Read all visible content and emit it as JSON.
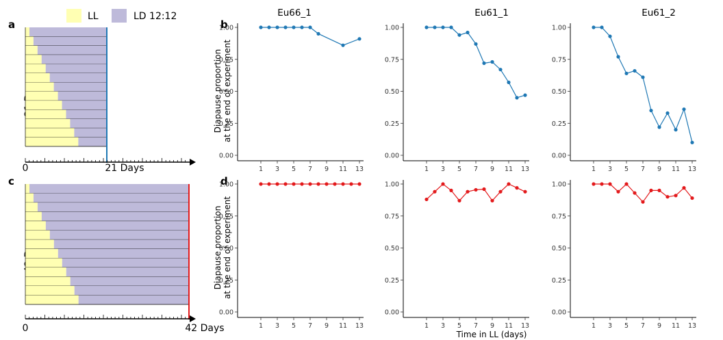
{
  "legend": {
    "items": [
      {
        "label": "LL",
        "color": "#ffffb3"
      },
      {
        "label": "LD 12:12",
        "color": "#bebada"
      }
    ]
  },
  "schematics": [
    {
      "panel": "a",
      "side_label": "21 Days",
      "axis_start": "0",
      "axis_end": "21 Days",
      "line_color": "#1f78b4",
      "ll_fractions": [
        0.05,
        0.1,
        0.15,
        0.2,
        0.25,
        0.3,
        0.35,
        0.4,
        0.45,
        0.5,
        0.55,
        0.6,
        0.65
      ]
    },
    {
      "panel": "c",
      "side_label": "42 Days",
      "axis_start": "0",
      "axis_end": "42 Days",
      "line_color": "#e31a1c",
      "ll_fractions": [
        0.025,
        0.05,
        0.075,
        0.1,
        0.125,
        0.15,
        0.175,
        0.2,
        0.225,
        0.25,
        0.275,
        0.3,
        0.325
      ]
    }
  ],
  "row_labels": [
    "b",
    "d"
  ],
  "column_titles": [
    "Eu66_1",
    "Eu61_1",
    "Eu61_2"
  ],
  "ylabel_line1": "Diapause proportion",
  "ylabel_line2": "at the end of experiment",
  "xlabel": "Time in LL (days)",
  "x_ticks": [
    "1",
    "3",
    "5",
    "7",
    "9",
    "11",
    "13"
  ],
  "y_ticks": [
    "0.00",
    "0.25",
    "0.50",
    "0.75",
    "1.00"
  ],
  "chart_data": [
    {
      "type": "line",
      "row": "b",
      "title": "Eu66_1",
      "color": "#1f78b4",
      "xlim": [
        1,
        13
      ],
      "ylim": [
        0,
        1
      ],
      "x": [
        1,
        2,
        3,
        4,
        5,
        6,
        7,
        8,
        11,
        13
      ],
      "y": [
        1.0,
        1.0,
        1.0,
        1.0,
        1.0,
        1.0,
        1.0,
        0.95,
        0.86,
        0.91
      ]
    },
    {
      "type": "line",
      "row": "b",
      "title": "Eu61_1",
      "color": "#1f78b4",
      "xlim": [
        1,
        13
      ],
      "ylim": [
        0,
        1
      ],
      "x": [
        1,
        2,
        3,
        4,
        5,
        6,
        7,
        8,
        9,
        10,
        11,
        12,
        13
      ],
      "y": [
        1.0,
        1.0,
        1.0,
        1.0,
        0.94,
        0.96,
        0.87,
        0.72,
        0.73,
        0.67,
        0.57,
        0.45,
        0.47
      ]
    },
    {
      "type": "line",
      "row": "b",
      "title": "Eu61_2",
      "color": "#1f78b4",
      "xlim": [
        1,
        13
      ],
      "ylim": [
        0,
        1
      ],
      "x": [
        1,
        2,
        3,
        4,
        5,
        6,
        7,
        8,
        9,
        10,
        11,
        12,
        13
      ],
      "y": [
        1.0,
        1.0,
        0.93,
        0.77,
        0.64,
        0.66,
        0.61,
        0.35,
        0.22,
        0.33,
        0.2,
        0.36,
        0.1
      ]
    },
    {
      "type": "line",
      "row": "d",
      "title": "",
      "color": "#e31a1c",
      "xlim": [
        1,
        13
      ],
      "ylim": [
        0,
        1
      ],
      "x": [
        1,
        2,
        3,
        4,
        5,
        6,
        7,
        8,
        9,
        10,
        11,
        12,
        13
      ],
      "y": [
        1.0,
        1.0,
        1.0,
        1.0,
        1.0,
        1.0,
        1.0,
        1.0,
        1.0,
        1.0,
        1.0,
        1.0,
        1.0
      ]
    },
    {
      "type": "line",
      "row": "d",
      "title": "",
      "color": "#e31a1c",
      "xlim": [
        1,
        13
      ],
      "ylim": [
        0,
        1
      ],
      "x": [
        1,
        2,
        3,
        4,
        5,
        6,
        7,
        8,
        9,
        10,
        11,
        12,
        13
      ],
      "y": [
        0.88,
        0.94,
        1.0,
        0.95,
        0.87,
        0.94,
        0.955,
        0.96,
        0.87,
        0.94,
        1.0,
        0.97,
        0.94
      ]
    },
    {
      "type": "line",
      "row": "d",
      "title": "",
      "color": "#e31a1c",
      "xlim": [
        1,
        13
      ],
      "ylim": [
        0,
        1
      ],
      "x": [
        1,
        2,
        3,
        4,
        5,
        6,
        7,
        8,
        9,
        10,
        11,
        12,
        13
      ],
      "y": [
        1.0,
        1.0,
        1.0,
        0.94,
        1.0,
        0.93,
        0.86,
        0.95,
        0.95,
        0.9,
        0.91,
        0.97,
        0.89
      ]
    }
  ]
}
